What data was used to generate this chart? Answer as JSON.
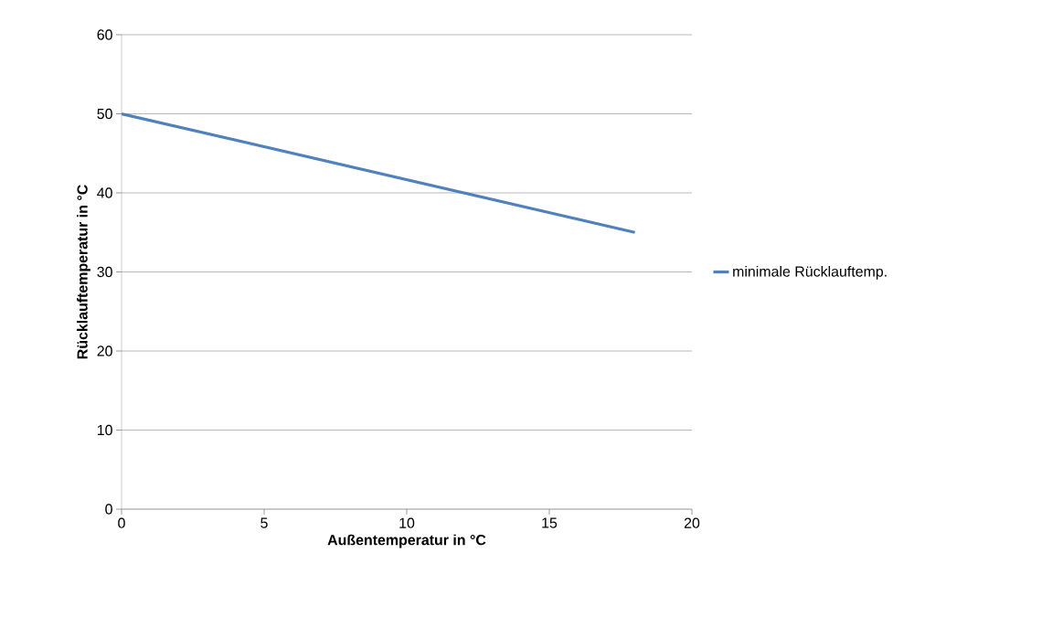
{
  "chart_data": {
    "type": "line",
    "xlabel": "Außentemperatur in °C",
    "ylabel": "Rücklauftemperatur in °C",
    "x": [
      0,
      18
    ],
    "series": [
      {
        "name": "minimale Rücklauftemp.",
        "color": "#4f81bd",
        "values": [
          50,
          35
        ]
      }
    ],
    "xlim": [
      0,
      20
    ],
    "ylim": [
      0,
      60
    ],
    "xticks": [
      0,
      5,
      10,
      15,
      20
    ],
    "yticks": [
      0,
      10,
      20,
      30,
      40,
      50,
      60
    ],
    "grid": "y",
    "legend": "right",
    "marker": "none",
    "line_style": "solid"
  }
}
